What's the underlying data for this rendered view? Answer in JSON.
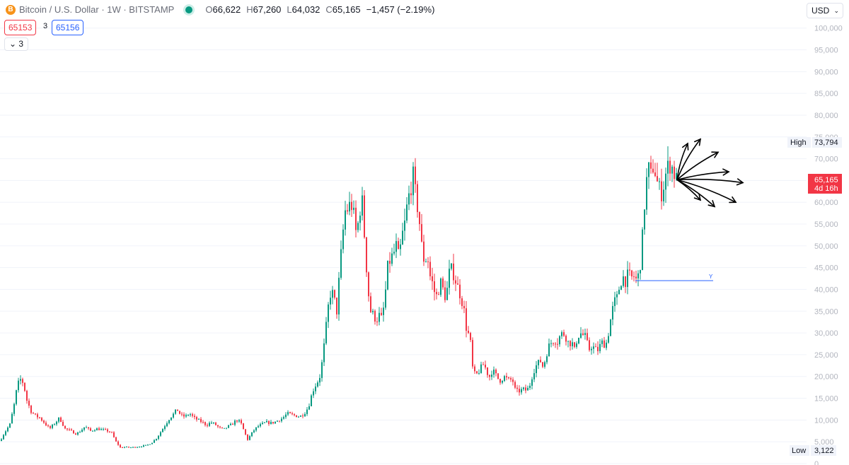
{
  "header": {
    "coin_icon": "B",
    "symbol": "Bitcoin / U.S. Dollar · 1W · BITSTAMP",
    "open_label": "O",
    "open": "66,622",
    "high_label": "H",
    "high": "67,260",
    "low_label": "L",
    "low": "64,032",
    "close_label": "C",
    "close": "65,165",
    "change": "−1,457 (−2.19%)"
  },
  "trade": {
    "sell": "65153",
    "spread": "3",
    "buy": "65156"
  },
  "indicators_toggle": "3",
  "currency": "USD",
  "colors": {
    "up": "#089981",
    "down": "#f23645",
    "line": "#2962ff",
    "drawing": "#000000"
  },
  "chart_data": {
    "type": "candlestick",
    "symbol": "BTCUSD",
    "interval": "1W",
    "y_ticks": [
      "0",
      "5,000",
      "10,000",
      "15,000",
      "20,000",
      "25,000",
      "30,000",
      "35,000",
      "40,000",
      "45,000",
      "50,000",
      "55,000",
      "60,000",
      "65,000",
      "70,000",
      "75,000",
      "80,000",
      "85,000",
      "90,000",
      "95,000",
      "100,000"
    ],
    "ylim": [
      0,
      105000
    ],
    "high": {
      "label": "High",
      "value": "73,794"
    },
    "low": {
      "label": "Low",
      "value": "3,122"
    },
    "last": {
      "value": "65,165",
      "countdown": "4d 16h"
    },
    "horizontal_line": {
      "value": 42000,
      "label": "Y"
    },
    "path": [
      [
        0,
        5200
      ],
      [
        6,
        7000
      ],
      [
        14,
        9000
      ],
      [
        20,
        13500
      ],
      [
        24,
        17500
      ],
      [
        28,
        19500
      ],
      [
        33,
        18500
      ],
      [
        38,
        14500
      ],
      [
        44,
        12000
      ],
      [
        50,
        11000
      ],
      [
        56,
        10500
      ],
      [
        62,
        9500
      ],
      [
        70,
        8000
      ],
      [
        76,
        9000
      ],
      [
        84,
        10500
      ],
      [
        92,
        8000
      ],
      [
        100,
        7500
      ],
      [
        108,
        6800
      ],
      [
        114,
        7500
      ],
      [
        120,
        8500
      ],
      [
        128,
        7500
      ],
      [
        136,
        8000
      ],
      [
        144,
        7800
      ],
      [
        152,
        7500
      ],
      [
        158,
        7000
      ],
      [
        164,
        5000
      ],
      [
        170,
        3700
      ],
      [
        176,
        3800
      ],
      [
        184,
        3700
      ],
      [
        192,
        3800
      ],
      [
        200,
        4000
      ],
      [
        208,
        4200
      ],
      [
        216,
        5000
      ],
      [
        222,
        6000
      ],
      [
        228,
        7500
      ],
      [
        234,
        9000
      ],
      [
        240,
        10500
      ],
      [
        246,
        11500
      ],
      [
        250,
        12500
      ],
      [
        256,
        11000
      ],
      [
        262,
        10800
      ],
      [
        268,
        11500
      ],
      [
        274,
        10500
      ],
      [
        280,
        10000
      ],
      [
        286,
        9500
      ],
      [
        292,
        8800
      ],
      [
        298,
        9500
      ],
      [
        304,
        9000
      ],
      [
        310,
        8200
      ],
      [
        316,
        7800
      ],
      [
        322,
        8500
      ],
      [
        328,
        9000
      ],
      [
        334,
        10000
      ],
      [
        340,
        9500
      ],
      [
        346,
        7000
      ],
      [
        350,
        5500
      ],
      [
        354,
        6500
      ],
      [
        358,
        7500
      ],
      [
        364,
        8500
      ],
      [
        370,
        9000
      ],
      [
        376,
        9500
      ],
      [
        382,
        9300
      ],
      [
        388,
        9500
      ],
      [
        394,
        10000
      ],
      [
        400,
        10500
      ],
      [
        406,
        11500
      ],
      [
        412,
        11200
      ],
      [
        418,
        11000
      ],
      [
        424,
        10800
      ],
      [
        430,
        11500
      ],
      [
        436,
        13000
      ],
      [
        440,
        15500
      ],
      [
        444,
        17500
      ],
      [
        448,
        18500
      ],
      [
        452,
        20000
      ],
      [
        456,
        24000
      ],
      [
        460,
        30000
      ],
      [
        464,
        36000
      ],
      [
        468,
        40000
      ],
      [
        472,
        38000
      ],
      [
        476,
        35000
      ],
      [
        480,
        44000
      ],
      [
        484,
        52000
      ],
      [
        488,
        58000
      ],
      [
        492,
        58500
      ],
      [
        496,
        60000
      ],
      [
        500,
        57000
      ],
      [
        504,
        52000
      ],
      [
        508,
        58000
      ],
      [
        512,
        60000
      ],
      [
        516,
        50000
      ],
      [
        520,
        40000
      ],
      [
        524,
        35000
      ],
      [
        528,
        34000
      ],
      [
        532,
        33000
      ],
      [
        536,
        34000
      ],
      [
        540,
        33000
      ],
      [
        544,
        38000
      ],
      [
        548,
        45000
      ],
      [
        552,
        47000
      ],
      [
        556,
        48000
      ],
      [
        560,
        50000
      ],
      [
        564,
        47000
      ],
      [
        568,
        52000
      ],
      [
        572,
        55000
      ],
      [
        576,
        60000
      ],
      [
        580,
        63000
      ],
      [
        584,
        66000
      ],
      [
        588,
        61000
      ],
      [
        592,
        57000
      ],
      [
        596,
        50000
      ],
      [
        600,
        46000
      ],
      [
        604,
        48000
      ],
      [
        608,
        43000
      ],
      [
        612,
        41000
      ],
      [
        616,
        38000
      ],
      [
        620,
        40000
      ],
      [
        624,
        42000
      ],
      [
        628,
        38000
      ],
      [
        632,
        40000
      ],
      [
        636,
        45000
      ],
      [
        640,
        44000
      ],
      [
        644,
        42000
      ],
      [
        648,
        40000
      ],
      [
        652,
        38000
      ],
      [
        656,
        35000
      ],
      [
        660,
        30000
      ],
      [
        664,
        29500
      ],
      [
        668,
        22000
      ],
      [
        672,
        20000
      ],
      [
        676,
        21000
      ],
      [
        680,
        22000
      ],
      [
        684,
        23000
      ],
      [
        688,
        21000
      ],
      [
        692,
        20000
      ],
      [
        696,
        21500
      ],
      [
        700,
        20500
      ],
      [
        704,
        19500
      ],
      [
        708,
        19000
      ],
      [
        712,
        20000
      ],
      [
        716,
        19500
      ],
      [
        720,
        19000
      ],
      [
        724,
        19500
      ],
      [
        728,
        17000
      ],
      [
        732,
        16500
      ],
      [
        736,
        16800
      ],
      [
        740,
        17000
      ],
      [
        744,
        16800
      ],
      [
        748,
        17500
      ],
      [
        752,
        20000
      ],
      [
        756,
        22000
      ],
      [
        760,
        23000
      ],
      [
        764,
        23500
      ],
      [
        768,
        22000
      ],
      [
        772,
        25000
      ],
      [
        776,
        27000
      ],
      [
        780,
        28000
      ],
      [
        784,
        28500
      ],
      [
        788,
        28000
      ],
      [
        792,
        29500
      ],
      [
        796,
        30000
      ],
      [
        800,
        29000
      ],
      [
        804,
        27500
      ],
      [
        808,
        28000
      ],
      [
        812,
        26000
      ],
      [
        816,
        29000
      ],
      [
        820,
        30000
      ],
      [
        824,
        29500
      ],
      [
        828,
        29000
      ],
      [
        832,
        26000
      ],
      [
        836,
        27000
      ],
      [
        840,
        26500
      ],
      [
        844,
        25800
      ],
      [
        848,
        27000
      ],
      [
        852,
        28000
      ],
      [
        856,
        27000
      ],
      [
        860,
        30000
      ],
      [
        864,
        34000
      ],
      [
        868,
        37000
      ],
      [
        872,
        38000
      ],
      [
        876,
        41000
      ],
      [
        880,
        43000
      ],
      [
        884,
        42000
      ],
      [
        888,
        43500
      ],
      [
        892,
        42500
      ],
      [
        896,
        43000
      ],
      [
        900,
        42000
      ],
      [
        904,
        44000
      ],
      [
        908,
        52000
      ],
      [
        912,
        62000
      ],
      [
        916,
        68000
      ],
      [
        920,
        66000
      ],
      [
        924,
        69000
      ],
      [
        928,
        65000
      ],
      [
        932,
        63000
      ],
      [
        936,
        62000
      ],
      [
        940,
        66000
      ],
      [
        944,
        68000
      ],
      [
        948,
        69000
      ],
      [
        952,
        67000
      ],
      [
        956,
        65165
      ]
    ],
    "drawing": {
      "type": "freehand",
      "origin": [
        957,
        65165
      ],
      "strokes": [
        [
          [
            957,
            65165
          ],
          [
            972,
            73500
          ]
        ],
        [
          [
            957,
            65165
          ],
          [
            990,
            74500
          ]
        ],
        [
          [
            957,
            65165
          ],
          [
            1015,
            71500
          ]
        ],
        [
          [
            957,
            65165
          ],
          [
            1030,
            67000
          ]
        ],
        [
          [
            957,
            65165
          ],
          [
            1050,
            64500
          ]
        ],
        [
          [
            957,
            65165
          ],
          [
            1040,
            60000
          ]
        ],
        [
          [
            957,
            65165
          ],
          [
            1010,
            59000
          ]
        ],
        [
          [
            957,
            65165
          ],
          [
            990,
            60500
          ]
        ]
      ]
    }
  }
}
